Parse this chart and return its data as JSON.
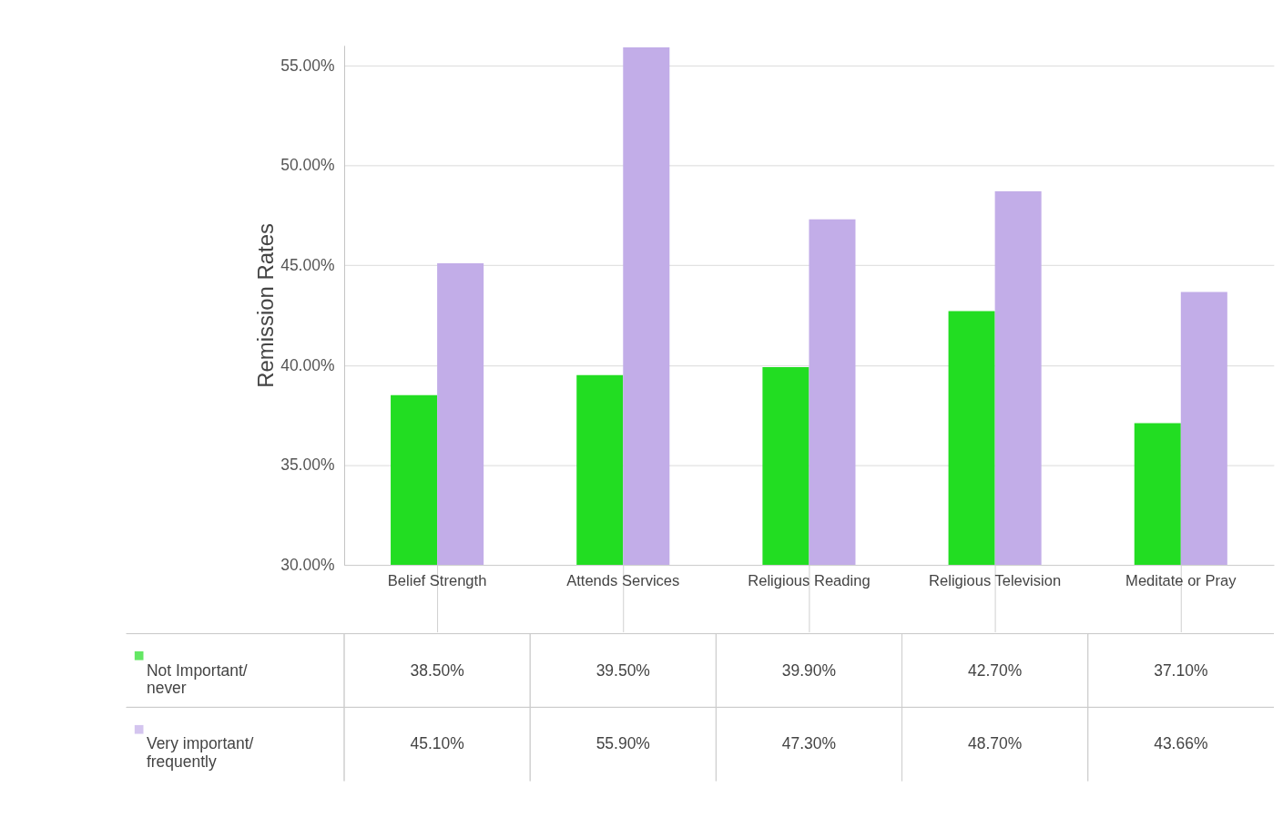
{
  "chart_data": {
    "type": "bar",
    "ylabel": "Remission Rates",
    "categories": [
      "Belief Strength",
      "Attends Services",
      "Religious Reading",
      "Religious Television",
      "Meditate or Pray"
    ],
    "series": [
      {
        "name": "Not Important/ never",
        "color": "#22dd22",
        "values": [
          38.5,
          39.5,
          39.9,
          42.7,
          37.1
        ],
        "value_labels": [
          "38.50%",
          "39.50%",
          "39.90%",
          "42.70%",
          "37.10%"
        ]
      },
      {
        "name": "Very important/ frequently",
        "color": "#c2ade8",
        "values": [
          45.1,
          55.9,
          47.3,
          48.7,
          43.66
        ],
        "value_labels": [
          "45.10%",
          "55.90%",
          "47.30%",
          "48.70%",
          "43.66%"
        ]
      }
    ],
    "ylim": [
      30,
      56
    ],
    "yticks": [
      {
        "value": 30,
        "label": "30.00%"
      },
      {
        "value": 35,
        "label": "35.00%"
      },
      {
        "value": 40,
        "label": "40.00%"
      },
      {
        "value": 45,
        "label": "45.00%"
      },
      {
        "value": 50,
        "label": "50.00%"
      },
      {
        "value": 55,
        "label": "55.00%"
      }
    ],
    "grid": "y",
    "legend": "bottom left"
  }
}
